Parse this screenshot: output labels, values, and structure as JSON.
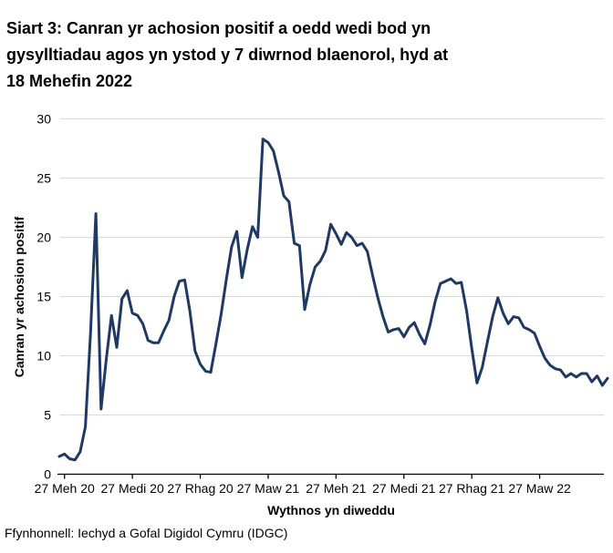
{
  "header": {
    "title": "Siart 3: Canran yr achosion positif a oedd wedi bod yn gysylltiadau agos yn ystod y 7 diwrnod blaenorol, hyd at 18 Mehefin 2022",
    "title_lines": [
      "Siart 3: Canran yr achosion positif a oedd wedi bod yn",
      "gysylltiadau agos yn ystod y 7 diwrnod blaenorol, hyd at",
      "18 Mehefin 2022"
    ]
  },
  "source": "Ffynhonnell: Iechyd a Gofal Digidol Cymru (IDGC)",
  "chart_data": {
    "type": "line",
    "title": "Siart 3: Canran yr achosion positif a oedd wedi bod yn gysylltiadau agos yn ystod y 7 diwrnod blaenorol, hyd at 18 Mehefin 2022",
    "xlabel": "Wythnos yn diweddu",
    "ylabel": "Canran yr achosion positif",
    "x_tick_labels": [
      "27 Meh 20",
      "27 Medi 20",
      "27 Rhag 20",
      "27 Maw 21",
      "27 Meh 21",
      "27 Medi 21",
      "27 Rhag 21",
      "27 Maw 22"
    ],
    "x_tick_indices": [
      1,
      14,
      27,
      40,
      53,
      66,
      79,
      92
    ],
    "x_unit": "wythnos",
    "y_ticks": [
      0,
      5,
      10,
      15,
      20,
      25,
      30
    ],
    "ylim": [
      0,
      30
    ],
    "grid": "horizontal",
    "legend": "none",
    "colors": {
      "line": "#1f3864",
      "grid": "#d9d9d9",
      "axis": "#000000",
      "text": "#000000"
    },
    "series": [
      {
        "name": "Canran yr achosion positif",
        "values": [
          1.5,
          1.7,
          1.3,
          1.2,
          1.9,
          4.0,
          12.0,
          22.0,
          5.5,
          9.7,
          13.4,
          10.7,
          14.8,
          15.5,
          13.6,
          13.4,
          12.7,
          11.3,
          11.1,
          11.1,
          12.1,
          13.0,
          15.0,
          16.3,
          16.4,
          13.8,
          10.4,
          9.3,
          8.7,
          8.6,
          11.0,
          13.5,
          16.5,
          19.2,
          20.5,
          16.6,
          19.0,
          20.9,
          20.0,
          28.3,
          28.0,
          27.3,
          25.5,
          23.5,
          23.0,
          19.5,
          19.3,
          13.9,
          16.0,
          17.5,
          18.0,
          18.9,
          21.1,
          20.3,
          19.4,
          20.4,
          20.0,
          19.3,
          19.5,
          18.8,
          16.8,
          14.9,
          13.3,
          12.0,
          12.2,
          12.3,
          11.6,
          12.4,
          12.8,
          11.8,
          11.0,
          12.6,
          14.6,
          16.1,
          16.3,
          16.5,
          16.1,
          16.2,
          13.8,
          10.6,
          7.7,
          9.0,
          11.2,
          13.3,
          14.9,
          13.6,
          12.7,
          13.3,
          13.2,
          12.4,
          12.2,
          11.9,
          10.8,
          9.8,
          9.2,
          8.9,
          8.8,
          8.2,
          8.5,
          8.2,
          8.5,
          8.5,
          7.8,
          8.3,
          7.5,
          8.1
        ]
      }
    ]
  }
}
